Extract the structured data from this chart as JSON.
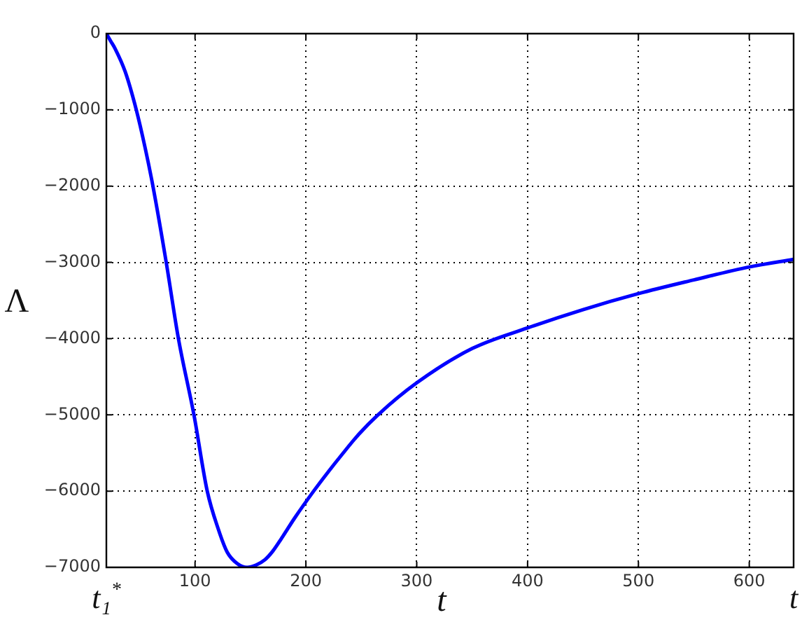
{
  "chart_data": {
    "type": "line",
    "xlabel": "t",
    "ylabel": "Λ",
    "x": [
      20,
      24,
      28,
      37,
      47,
      55,
      62,
      74,
      85,
      99,
      111,
      121,
      129,
      138,
      147,
      155,
      163,
      170,
      178,
      190,
      207,
      220,
      232,
      248,
      265,
      300,
      350,
      400,
      450,
      500,
      550,
      600,
      640
    ],
    "series": [
      {
        "color": "#0000ff",
        "values": [
          0,
          -100,
          -200,
          -500,
          -1000,
          -1500,
          -2000,
          -3000,
          -4000,
          -5000,
          -6000,
          -6500,
          -6800,
          -6950,
          -7000,
          -6970,
          -6900,
          -6790,
          -6620,
          -6350,
          -6000,
          -5750,
          -5530,
          -5250,
          -5000,
          -4580,
          -4130,
          -3860,
          -3620,
          -3410,
          -3230,
          -3060,
          -2960
        ]
      }
    ],
    "xlim": [
      20,
      640
    ],
    "ylim": [
      -7000,
      0
    ],
    "xticks": [
      100,
      200,
      300,
      400,
      500,
      600
    ],
    "yticks": [
      {
        "value": -7000,
        "label": "−7000"
      },
      {
        "value": -6000,
        "label": "−6000"
      },
      {
        "value": -5000,
        "label": "−5000"
      },
      {
        "value": -4000,
        "label": "−4000"
      },
      {
        "value": -3000,
        "label": "−3000"
      },
      {
        "value": -2000,
        "label": "−2000"
      },
      {
        "value": -1000,
        "label": "−1000"
      },
      0
    ],
    "annotations": [
      "t₁$^{*}$",
      "t"
    ],
    "grid": true,
    "marker": "none",
    "line_style": "solid"
  }
}
